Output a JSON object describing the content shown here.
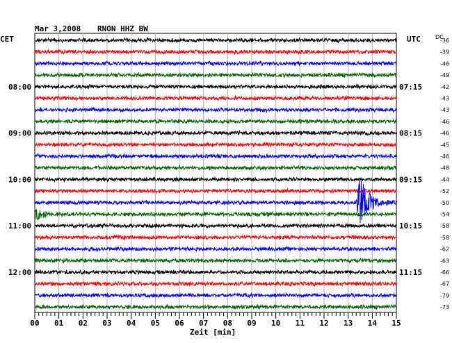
{
  "header": {
    "date": "Mar 3,2008",
    "station": "RNON HHZ BW",
    "left_tz": "CET",
    "right_tz": "UTC",
    "dc_label": "DC"
  },
  "chart_data": {
    "type": "line",
    "xlabel": "Zeit [min]",
    "x_range": [
      0,
      15
    ],
    "x_ticks": [
      "00",
      "01",
      "02",
      "03",
      "04",
      "05",
      "06",
      "07",
      "08",
      "09",
      "10",
      "11",
      "12",
      "13",
      "14",
      "15"
    ],
    "trace_colors": [
      "#000000",
      "#ff0000",
      "#0000ff",
      "#006400"
    ],
    "left_time_labels": [
      {
        "trace": 4,
        "label": "08:00"
      },
      {
        "trace": 8,
        "label": "09:00"
      },
      {
        "trace": 12,
        "label": "10:00"
      },
      {
        "trace": 16,
        "label": "11:00"
      },
      {
        "trace": 20,
        "label": "12:00"
      }
    ],
    "right_time_labels": [
      {
        "trace": 4,
        "label": "07:15"
      },
      {
        "trace": 8,
        "label": "08:15"
      },
      {
        "trace": 12,
        "label": "09:15"
      },
      {
        "trace": 16,
        "label": "10:15"
      },
      {
        "trace": 20,
        "label": "11:15"
      }
    ],
    "dc_offsets": [
      "-36",
      "-39",
      "-46",
      "-49",
      "-42",
      "-43",
      "-43",
      "-46",
      "-46",
      "-45",
      "-46",
      "-48",
      "-44",
      "-52",
      "-50",
      "-54",
      "-58",
      "-58",
      "-62",
      "-63",
      "-66",
      "-67",
      "-79",
      "-73"
    ],
    "events": [
      {
        "trace": 14,
        "start_min": 13.3,
        "end_min": 15.0,
        "peak_amplitude": "large"
      },
      {
        "trace": 15,
        "start_min": 0.0,
        "end_min": 0.6,
        "peak_amplitude": "medium"
      }
    ]
  }
}
